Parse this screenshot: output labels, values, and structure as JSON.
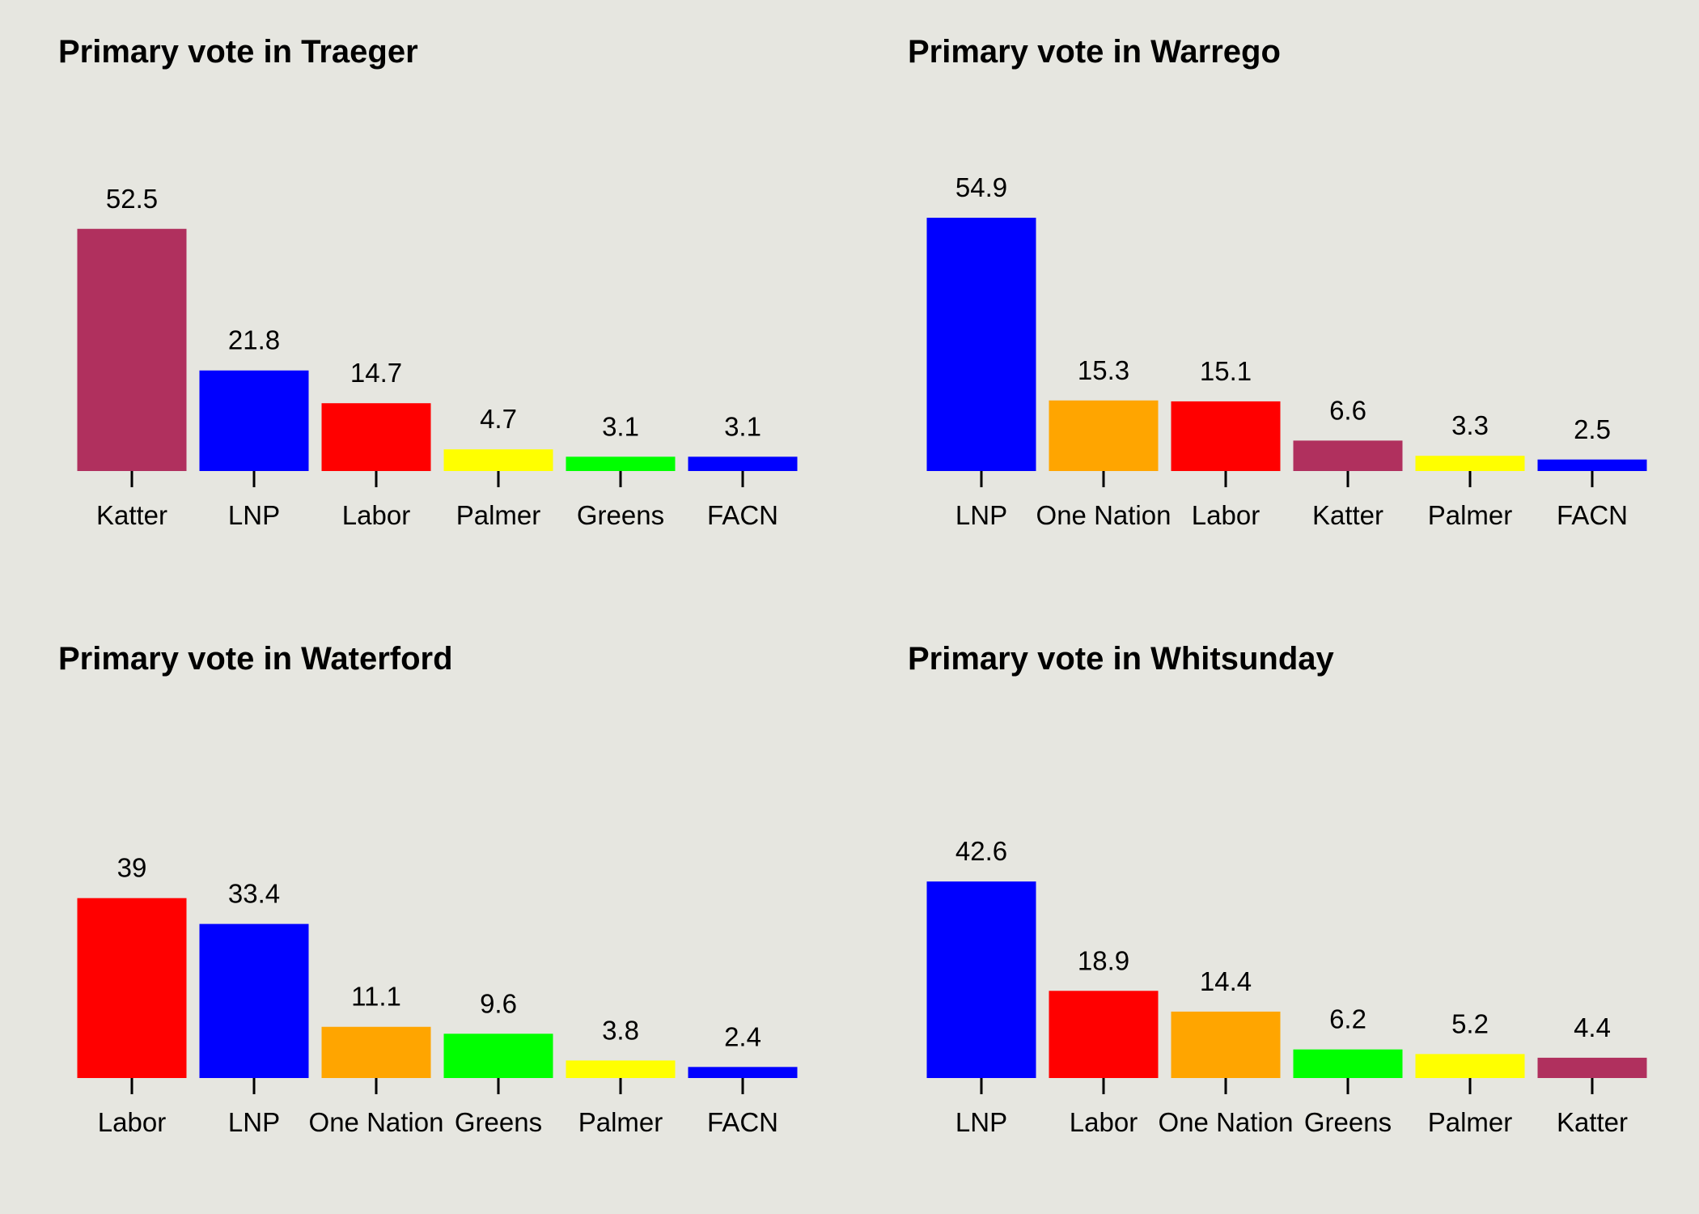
{
  "chart_data": [
    {
      "type": "bar",
      "title": "Primary vote in Traeger",
      "categories": [
        "Katter",
        "LNP",
        "Labor",
        "Palmer",
        "Greens",
        "FACN"
      ],
      "values": [
        52.5,
        21.8,
        14.7,
        4.7,
        3.1,
        3.1
      ],
      "value_labels": [
        "52.5",
        "21.8",
        "14.7",
        "4.7",
        "3.1",
        "3.1"
      ],
      "colors": [
        "#b0305e",
        "#0000ff",
        "#ff0000",
        "#ffff00",
        "#00ff00",
        "#0000ff"
      ],
      "ylim": [
        0,
        60
      ],
      "grid": false,
      "y_axis_visible": false
    },
    {
      "type": "bar",
      "title": "Primary vote in Warrego",
      "categories": [
        "LNP",
        "One Nation",
        "Labor",
        "Katter",
        "Palmer",
        "FACN"
      ],
      "values": [
        54.9,
        15.3,
        15.1,
        6.6,
        3.3,
        2.5
      ],
      "value_labels": [
        "54.9",
        "15.3",
        "15.1",
        "6.6",
        "3.3",
        "2.5"
      ],
      "colors": [
        "#0000ff",
        "#ffa500",
        "#ff0000",
        "#b0305e",
        "#ffff00",
        "#0000ff"
      ],
      "ylim": [
        0,
        60
      ],
      "grid": false,
      "y_axis_visible": false
    },
    {
      "type": "bar",
      "title": "Primary vote in Waterford",
      "categories": [
        "Labor",
        "LNP",
        "One Nation",
        "Greens",
        "Palmer",
        "FACN"
      ],
      "values": [
        39,
        33.4,
        11.1,
        9.6,
        3.8,
        2.4
      ],
      "value_labels": [
        "39",
        "33.4",
        "11.1",
        "9.6",
        "3.8",
        "2.4"
      ],
      "colors": [
        "#ff0000",
        "#0000ff",
        "#ffa500",
        "#00ff00",
        "#ffff00",
        "#0000ff"
      ],
      "ylim": [
        0,
        60
      ],
      "grid": false,
      "y_axis_visible": false
    },
    {
      "type": "bar",
      "title": "Primary vote in Whitsunday",
      "categories": [
        "LNP",
        "Labor",
        "One Nation",
        "Greens",
        "Palmer",
        "Katter"
      ],
      "values": [
        42.6,
        18.9,
        14.4,
        6.2,
        5.2,
        4.4
      ],
      "value_labels": [
        "42.6",
        "18.9",
        "14.4",
        "6.2",
        "5.2",
        "4.4"
      ],
      "colors": [
        "#0000ff",
        "#ff0000",
        "#ffa500",
        "#00ff00",
        "#ffff00",
        "#b0305e"
      ],
      "ylim": [
        0,
        60
      ],
      "grid": false,
      "y_axis_visible": false
    }
  ]
}
